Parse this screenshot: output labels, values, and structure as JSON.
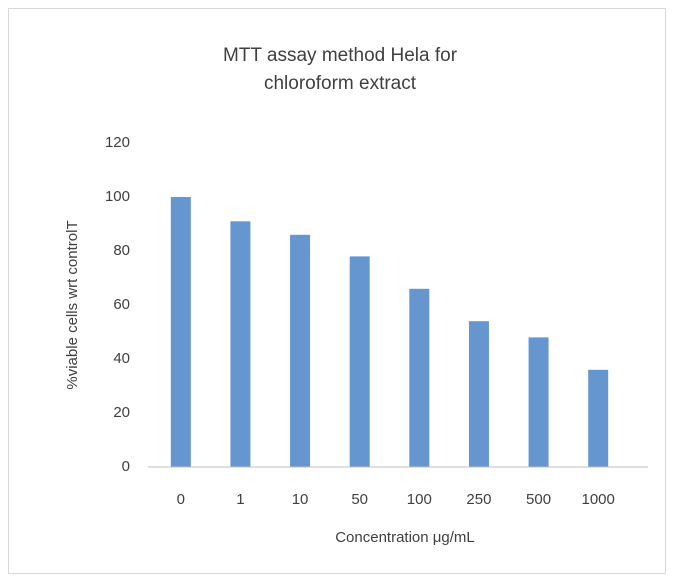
{
  "chart_data": {
    "type": "bar",
    "title": "MTT assay method Hela for chloroform extract",
    "x_label": "Concentration μg/mL",
    "y_label": "%viable cells wrt controlT",
    "categories": [
      "0",
      "1",
      "10",
      "50",
      "100",
      "250",
      "500",
      "1000"
    ],
    "values": [
      100,
      91,
      86,
      78,
      66,
      54,
      48,
      36
    ],
    "color": "#6596cf",
    "ylim": [
      0,
      120
    ],
    "yticks": [
      0,
      20,
      40,
      60,
      80,
      100,
      120
    ],
    "grid": false
  }
}
